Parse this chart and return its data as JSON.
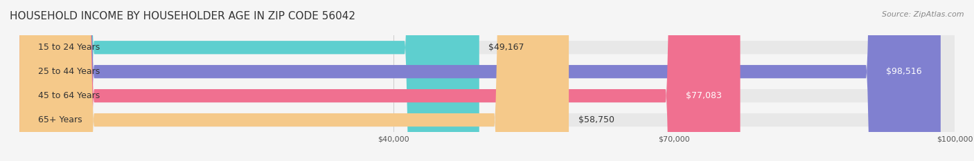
{
  "title": "HOUSEHOLD INCOME BY HOUSEHOLDER AGE IN ZIP CODE 56042",
  "source": "Source: ZipAtlas.com",
  "categories": [
    "15 to 24 Years",
    "25 to 44 Years",
    "45 to 64 Years",
    "65+ Years"
  ],
  "values": [
    49167,
    98516,
    77083,
    58750
  ],
  "bar_colors": [
    "#5ecfcf",
    "#8080d0",
    "#f07090",
    "#f5c98a"
  ],
  "bar_bg_color": "#eeeeee",
  "xmin": 0,
  "xmax": 100000,
  "xticks": [
    40000,
    70000,
    100000
  ],
  "xtick_labels": [
    "$40,000",
    "$70,000",
    "$100,000"
  ],
  "label_color_inside": [
    "#333333",
    "#ffffff",
    "#ffffff",
    "#333333"
  ],
  "fig_bg": "#f5f5f5",
  "bar_bg": "#e8e8e8",
  "title_fontsize": 11,
  "source_fontsize": 8,
  "label_fontsize": 9,
  "cat_fontsize": 9,
  "tick_fontsize": 8
}
